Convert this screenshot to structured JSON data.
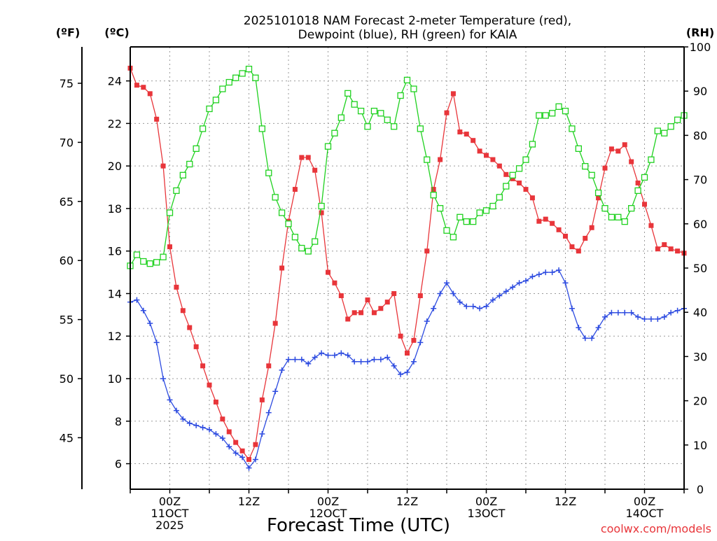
{
  "chart_data": {
    "type": "line",
    "title": "2025101018 NAM Forecast 2-meter Temperature (red), Dewpoint (blue), RH (green) for KAIA",
    "title_lines": [
      "2025101018 NAM Forecast 2-meter Temperature (red),",
      "Dewpoint (blue), RH (green) for KAIA"
    ],
    "xlabel": "Forecast Time (UTC)",
    "credit": "coolwx.com/models",
    "units": {
      "left_outer": "(ºF)",
      "left_inner": "(ºC)",
      "right": "(RH)"
    },
    "x": {
      "unit": "hours since 2025-10-10 18Z",
      "range": [
        0,
        84
      ],
      "ticks": [
        {
          "hour": 6,
          "lines": [
            "00Z",
            "11OCT",
            "2025"
          ]
        },
        {
          "hour": 18,
          "lines": [
            "12Z"
          ]
        },
        {
          "hour": 30,
          "lines": [
            "00Z",
            "12OCT"
          ]
        },
        {
          "hour": 42,
          "lines": [
            "12Z"
          ]
        },
        {
          "hour": 54,
          "lines": [
            "00Z",
            "13OCT"
          ]
        },
        {
          "hour": 66,
          "lines": [
            "12Z"
          ]
        },
        {
          "hour": 78,
          "lines": [
            "00Z",
            "14OCT"
          ]
        }
      ]
    },
    "y_celsius": {
      "range": [
        4.8,
        25.6
      ],
      "ticks": [
        6,
        8,
        10,
        12,
        14,
        16,
        18,
        20,
        22,
        24
      ]
    },
    "y_fahrenheit": {
      "range": [
        40.64,
        78.08
      ],
      "ticks": [
        45,
        50,
        55,
        60,
        65,
        70,
        75
      ]
    },
    "y_rh": {
      "range": [
        0,
        100
      ],
      "ticks": [
        0,
        10,
        20,
        30,
        40,
        50,
        60,
        70,
        80,
        90,
        100
      ]
    },
    "series": [
      {
        "name": "Temperature",
        "unit": "C",
        "color": "#e8353a",
        "marker": "filled-square",
        "values": [
          24.6,
          23.8,
          23.7,
          23.4,
          22.2,
          20.0,
          16.2,
          14.3,
          13.2,
          12.4,
          11.5,
          10.6,
          9.7,
          8.9,
          8.1,
          7.5,
          7.0,
          6.6,
          6.2,
          6.9,
          9.0,
          10.6,
          12.6,
          15.2,
          17.4,
          18.9,
          20.4,
          20.4,
          19.8,
          17.8,
          15.0,
          14.5,
          13.9,
          12.8,
          13.1,
          13.1,
          13.7,
          13.1,
          13.3,
          13.6,
          14.0,
          12.0,
          11.2,
          11.8,
          13.9,
          16.0,
          18.9,
          20.3,
          22.5,
          23.4,
          21.6,
          21.5,
          21.2,
          20.7,
          20.5,
          20.3,
          20.0,
          19.6,
          19.4,
          19.2,
          18.9,
          18.5,
          17.4,
          17.5,
          17.3,
          17.0,
          16.7,
          16.2,
          16.0,
          16.6,
          17.1,
          18.5,
          19.9,
          20.8,
          20.7,
          21.0,
          20.2,
          19.2,
          18.2,
          17.2,
          16.1,
          16.3,
          16.1,
          16.0,
          15.9
        ]
      },
      {
        "name": "Dewpoint",
        "unit": "C",
        "color": "#2d4be0",
        "marker": "plus",
        "values": [
          13.6,
          13.7,
          13.2,
          12.6,
          11.7,
          10.0,
          9.0,
          8.5,
          8.1,
          7.9,
          7.8,
          7.7,
          7.6,
          7.4,
          7.2,
          6.8,
          6.5,
          6.3,
          5.8,
          6.2,
          7.4,
          8.4,
          9.4,
          10.4,
          10.9,
          10.9,
          10.9,
          10.7,
          11.0,
          11.2,
          11.1,
          11.1,
          11.2,
          11.1,
          10.8,
          10.8,
          10.8,
          10.9,
          10.9,
          11.0,
          10.6,
          10.2,
          10.3,
          10.8,
          11.7,
          12.7,
          13.3,
          14.0,
          14.5,
          14.0,
          13.6,
          13.4,
          13.4,
          13.3,
          13.4,
          13.7,
          13.9,
          14.1,
          14.3,
          14.5,
          14.6,
          14.8,
          14.9,
          15.0,
          15.0,
          15.1,
          14.5,
          13.3,
          12.4,
          11.9,
          11.9,
          12.4,
          12.9,
          13.1,
          13.1,
          13.1,
          13.1,
          12.9,
          12.8,
          12.8,
          12.8,
          12.9,
          13.1,
          13.2,
          13.3
        ]
      },
      {
        "name": "RH",
        "unit": "%",
        "color": "#1fd11f",
        "marker": "open-square",
        "values": [
          50.5,
          53.0,
          51.5,
          51.0,
          51.3,
          52.5,
          62.5,
          67.5,
          71.0,
          73.5,
          77.0,
          81.5,
          86.0,
          88.0,
          90.5,
          92.0,
          93.0,
          94.0,
          95.0,
          93.0,
          81.5,
          71.5,
          66.0,
          62.5,
          60.0,
          57.0,
          54.5,
          53.8,
          56.0,
          64.0,
          77.5,
          80.5,
          84.0,
          89.5,
          87.0,
          85.5,
          82.0,
          85.5,
          85.0,
          83.5,
          82.0,
          89.0,
          92.5,
          90.5,
          81.5,
          74.5,
          66.5,
          63.5,
          58.5,
          57.0,
          61.5,
          60.5,
          60.5,
          62.5,
          63.0,
          64.0,
          66.0,
          68.5,
          71.0,
          72.5,
          74.5,
          78.0,
          84.5,
          84.5,
          85.0,
          86.5,
          85.5,
          81.5,
          77.0,
          73.0,
          71.0,
          67.0,
          63.5,
          61.5,
          61.5,
          60.5,
          63.5,
          67.5,
          70.5,
          74.5,
          81.0,
          80.5,
          82.0,
          83.5,
          84.5
        ]
      }
    ]
  }
}
